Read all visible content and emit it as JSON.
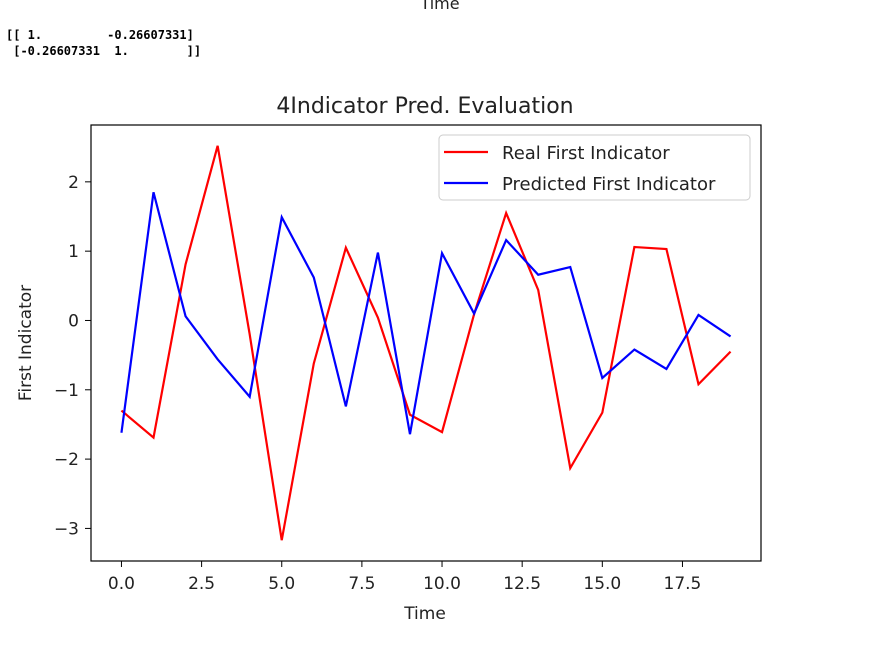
{
  "previous_chart": {
    "xlabel": "Time"
  },
  "console": {
    "lines": [
      "[[ 1.         -0.26607331]",
      " [-0.26607331  1.        ]]"
    ]
  },
  "chart_data": {
    "type": "line",
    "title": "4Indicator Pred. Evaluation",
    "xlabel": "Time",
    "ylabel": "First Indicator",
    "xlim": [
      -0.95,
      19.95
    ],
    "ylim": [
      -3.47,
      2.82
    ],
    "xticks": [
      0.0,
      2.5,
      5.0,
      7.5,
      10.0,
      12.5,
      15.0,
      17.5
    ],
    "xtick_labels": [
      "0.0",
      "2.5",
      "5.0",
      "7.5",
      "10.0",
      "12.5",
      "15.0",
      "17.5"
    ],
    "yticks": [
      -3,
      -2,
      -1,
      0,
      1,
      2
    ],
    "ytick_labels": [
      "−3",
      "−2",
      "−1",
      "0",
      "1",
      "2"
    ],
    "grid": false,
    "legend_position": "upper right",
    "x": [
      0,
      1,
      2,
      3,
      4,
      5,
      6,
      7,
      8,
      9,
      10,
      11,
      12,
      13,
      14,
      15,
      16,
      17,
      18,
      19
    ],
    "series": [
      {
        "name": "Real First Indicator",
        "color": "#ff0000",
        "values": [
          -1.3,
          -1.69,
          0.81,
          2.52,
          -0.2,
          -3.17,
          -0.62,
          1.05,
          0.04,
          -1.36,
          -1.61,
          0.09,
          1.55,
          0.44,
          -2.13,
          -1.33,
          1.06,
          1.03,
          -0.92,
          -0.45
        ]
      },
      {
        "name": "Predicted First Indicator",
        "color": "#0000ff",
        "values": [
          -1.62,
          1.85,
          0.06,
          -0.56,
          -1.1,
          1.49,
          0.62,
          -1.24,
          0.98,
          -1.64,
          0.97,
          0.1,
          1.16,
          0.66,
          0.77,
          -0.83,
          -0.42,
          -0.7,
          0.08,
          -0.23
        ]
      }
    ]
  }
}
